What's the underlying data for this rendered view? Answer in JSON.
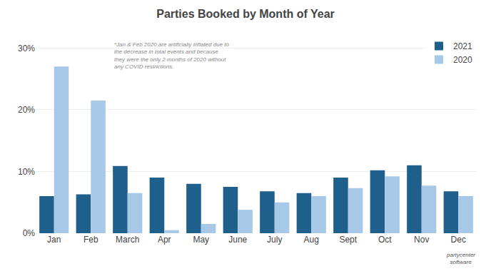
{
  "chart_data": {
    "type": "bar",
    "title": "Parties Booked by Month of Year",
    "categories": [
      "Jan",
      "Feb",
      "March",
      "Apr",
      "May",
      "June",
      "July",
      "Aug",
      "Sept",
      "Oct",
      "Nov",
      "Dec"
    ],
    "series": [
      {
        "name": "2021",
        "color": "#1F5F8B",
        "values": [
          0.06,
          0.063,
          0.109,
          0.09,
          0.08,
          0.075,
          0.068,
          0.065,
          0.09,
          0.102,
          0.11,
          0.068
        ]
      },
      {
        "name": "2020",
        "color": "#A8C8E8",
        "values": [
          0.27,
          0.215,
          0.065,
          0.005,
          0.015,
          0.038,
          0.05,
          0.06,
          0.073,
          0.092,
          0.077,
          0.06
        ]
      }
    ],
    "ylim": [
      0,
      0.32
    ],
    "yticks": [
      {
        "value": 0.0,
        "label": "0%"
      },
      {
        "value": 0.1,
        "label": "10%"
      },
      {
        "value": 0.2,
        "label": "20%"
      },
      {
        "value": 0.3,
        "label": "30%"
      }
    ],
    "grid": true,
    "legend": "upper right",
    "annotations": [
      "*Jan & Feb 2020 are artificially inflated due to\nthe decrease in total events and because\nthey were the only 2 months of 2020 without\nany COVID restrictions.",
      "partycenter\n  software"
    ]
  }
}
